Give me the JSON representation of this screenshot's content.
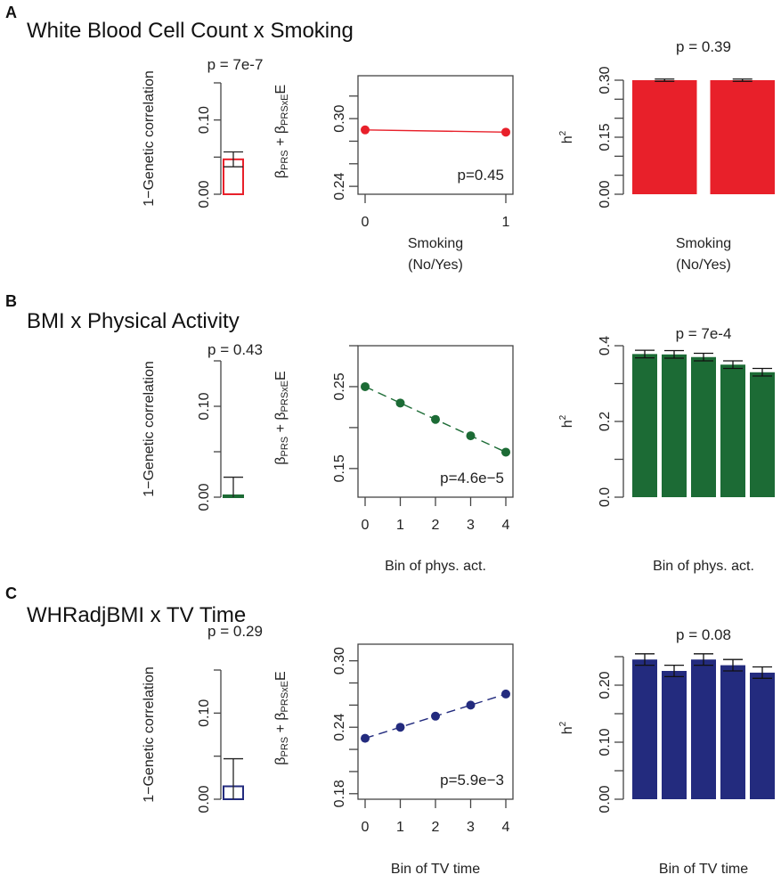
{
  "chart_data": [
    {
      "panel": "A",
      "title": "White Blood Cell Count x Smoking",
      "color": "#e8202a",
      "genetic_corr": {
        "type": "bar",
        "ylabel": "1−Genetic correlation",
        "p_label": "p = 7e-7",
        "ylim": [
          0,
          0.15
        ],
        "yticks": [
          "0.00",
          "0.10"
        ],
        "value": 0.047,
        "err_low": 0.037,
        "err_high": 0.057,
        "filled": false
      },
      "beta": {
        "type": "line",
        "ylabel_main": "β",
        "ylabel_sub1": "PRS",
        "ylabel_mid": " + β",
        "ylabel_sub2": "PRSxE",
        "ylabel_end": "E",
        "xlabel": "Smoking",
        "xlabel2": "(No/Yes)",
        "x": [
          0,
          1
        ],
        "xticks": [
          "0",
          "1"
        ],
        "values": [
          0.29,
          0.288
        ],
        "ylim": [
          0.233,
          0.338
        ],
        "yticks": [
          0.24,
          0.26,
          0.28,
          0.3,
          0.32
        ],
        "ytick_labels": [
          "0.24",
          "",
          "",
          "0.30",
          ""
        ],
        "p_label": "p=0.45",
        "dashed": false
      },
      "h2": {
        "type": "bar",
        "ylabel": "h",
        "ylabel_sup": "2",
        "xlabel": "Smoking",
        "xlabel2": "(No/Yes)",
        "p_label": "p = 0.39",
        "values": [
          0.3,
          0.3
        ],
        "errors": [
          0.003,
          0.003
        ],
        "ylim": [
          0,
          0.3
        ],
        "yticks": [
          0,
          0.05,
          0.1,
          0.15,
          0.2,
          0.25,
          0.3
        ],
        "ytick_labels": [
          "0.00",
          "",
          "",
          "0.15",
          "",
          "",
          "0.30"
        ]
      }
    },
    {
      "panel": "B",
      "title": "BMI x Physical Activity",
      "color": "#1c6b35",
      "genetic_corr": {
        "type": "bar",
        "ylabel": "1−Genetic correlation",
        "p_label": "p = 0.43",
        "ylim": [
          0,
          0.15
        ],
        "yticks": [
          "0.00",
          "0.10"
        ],
        "value": 0.002,
        "err_low": 0.0,
        "err_high": 0.022,
        "filled": true
      },
      "beta": {
        "type": "line",
        "ylabel_main": "β",
        "ylabel_sub1": "PRS",
        "ylabel_mid": " + β",
        "ylabel_sub2": "PRSxE",
        "ylabel_end": "E",
        "xlabel": "Bin of phys. act.",
        "xlabel2": "",
        "x": [
          0,
          1,
          2,
          3,
          4
        ],
        "xticks": [
          "0",
          "1",
          "2",
          "3",
          "4"
        ],
        "values": [
          0.25,
          0.23,
          0.21,
          0.19,
          0.17
        ],
        "ylim": [
          0.115,
          0.3
        ],
        "yticks": [
          0.15,
          0.2,
          0.25,
          0.3
        ],
        "ytick_labels": [
          "0.15",
          "",
          "0.25",
          ""
        ],
        "p_label": "p=4.6e−5",
        "dashed": true
      },
      "h2": {
        "type": "bar",
        "ylabel": "h",
        "ylabel_sup": "2",
        "xlabel": "Bin of phys. act.",
        "xlabel2": "",
        "p_label": "p = 7e-4",
        "values": [
          0.378,
          0.377,
          0.37,
          0.35,
          0.33
        ],
        "errors": [
          0.01,
          0.01,
          0.01,
          0.01,
          0.01
        ],
        "ylim": [
          0,
          0.4
        ],
        "yticks": [
          0,
          0.1,
          0.2,
          0.3,
          0.4
        ],
        "ytick_labels": [
          "0.0",
          "",
          "0.2",
          "",
          "0.4"
        ]
      }
    },
    {
      "panel": "C",
      "title": "WHRadjBMI x TV Time",
      "color": "#232b7e",
      "genetic_corr": {
        "type": "bar",
        "ylabel": "1−Genetic correlation",
        "p_label": "p = 0.29",
        "ylim": [
          0,
          0.15
        ],
        "yticks": [
          "0.00",
          "0.10"
        ],
        "value": 0.015,
        "err_low": 0.0,
        "err_high": 0.047,
        "filled": false
      },
      "beta": {
        "type": "line",
        "ylabel_main": "β",
        "ylabel_sub1": "PRS",
        "ylabel_mid": " + β",
        "ylabel_sub2": "PRSxE",
        "ylabel_end": "E",
        "xlabel": "Bin of TV time",
        "xlabel2": "",
        "x": [
          0,
          1,
          2,
          3,
          4
        ],
        "xticks": [
          "0",
          "1",
          "2",
          "3",
          "4"
        ],
        "values": [
          0.23,
          0.24,
          0.25,
          0.26,
          0.27
        ],
        "ylim": [
          0.175,
          0.315
        ],
        "yticks": [
          0.18,
          0.2,
          0.22,
          0.24,
          0.26,
          0.28,
          0.3
        ],
        "ytick_labels": [
          "0.18",
          "",
          "",
          "0.24",
          "",
          "",
          "0.30"
        ],
        "p_label": "p=5.9e−3",
        "dashed": true
      },
      "h2": {
        "type": "bar",
        "ylabel": "h",
        "ylabel_sup": "2",
        "xlabel": "Bin of TV time",
        "xlabel2": "",
        "p_label": "p = 0.08",
        "values": [
          0.245,
          0.225,
          0.245,
          0.235,
          0.222
        ],
        "errors": [
          0.01,
          0.01,
          0.01,
          0.01,
          0.01
        ],
        "ylim": [
          0,
          0.25
        ],
        "yticks": [
          0,
          0.05,
          0.1,
          0.15,
          0.2,
          0.25
        ],
        "ytick_labels": [
          "0.00",
          "",
          "0.10",
          "",
          "0.20",
          ""
        ]
      }
    }
  ]
}
